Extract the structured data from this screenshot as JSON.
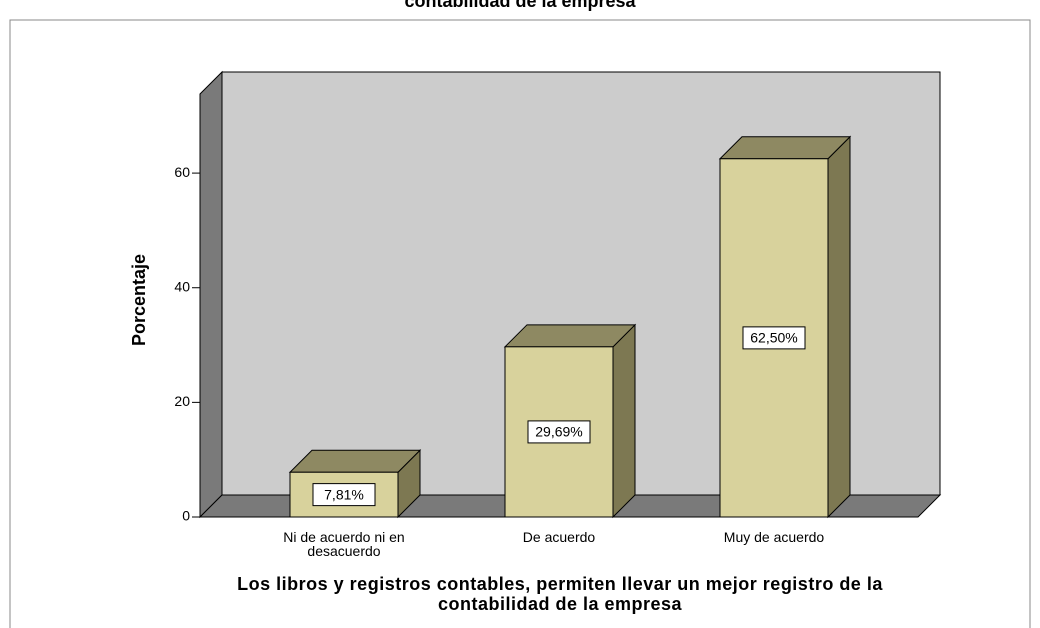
{
  "chart_data": {
    "type": "bar",
    "title": "contabilidad de la empresa",
    "ylabel": "Porcentaje",
    "xlabel": "Los libros y registros contables, permiten llevar un mejor registro de la contabilidad de la empresa",
    "categories": [
      "Ni de acuerdo ni en desacuerdo",
      "De acuerdo",
      "Muy de acuerdo"
    ],
    "values": [
      7.81,
      29.69,
      62.5
    ],
    "value_labels": [
      "7,81%",
      "29,69%",
      "62,50%"
    ],
    "color": "#d8d29c",
    "ylim": [
      0,
      73.8
    ],
    "yticks": [
      0,
      20,
      40,
      60
    ]
  }
}
